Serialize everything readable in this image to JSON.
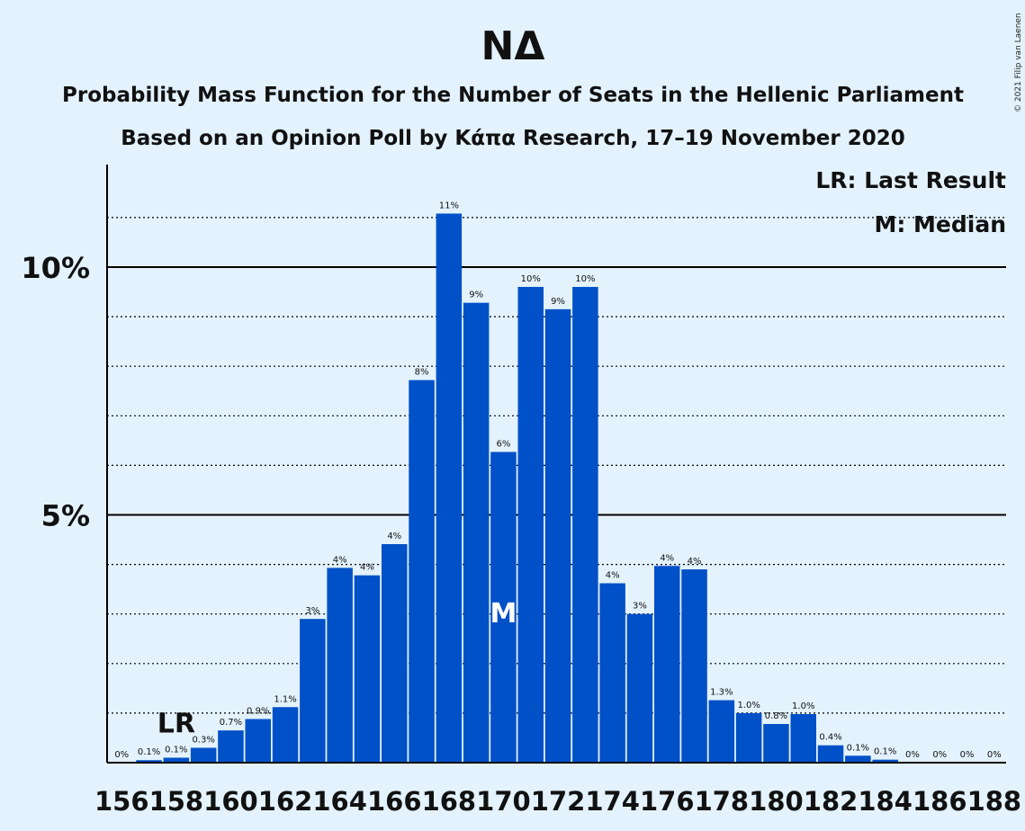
{
  "chart_data": {
    "type": "bar",
    "title": "ΝΔ",
    "subtitle_1": "Probability Mass Function for the Number of Seats in the Hellenic Parliament",
    "subtitle_2": "Based on an Opinion Poll by Κάπα Research, 17–19 November 2020",
    "copyright": "© 2021 Filip van Laenen",
    "legend": {
      "last_result": "LR: Last Result",
      "median": "M: Median",
      "placement": "top-right"
    },
    "y_ticks": [
      {
        "value": 5,
        "label": "5%"
      },
      {
        "value": 10,
        "label": "10%"
      }
    ],
    "ylim": [
      0,
      12
    ],
    "grid_dotted_every": 1,
    "bar_color": "#0050c8",
    "x": [
      156,
      157,
      158,
      159,
      160,
      161,
      162,
      163,
      164,
      165,
      166,
      167,
      168,
      169,
      170,
      171,
      172,
      173,
      174,
      175,
      176,
      177,
      178,
      179,
      180,
      181,
      182,
      183,
      184,
      185,
      186,
      187,
      188
    ],
    "values": [
      0.0,
      0.05,
      0.1,
      0.3,
      0.65,
      0.88,
      1.12,
      2.9,
      3.93,
      3.78,
      4.41,
      7.72,
      11.08,
      9.28,
      6.27,
      9.6,
      9.15,
      9.6,
      3.62,
      3.0,
      3.97,
      3.9,
      1.26,
      1.0,
      0.78,
      0.98,
      0.35,
      0.14,
      0.06,
      0.0,
      0.0,
      0.0,
      0.0
    ],
    "data_labels": [
      "0%",
      "0.1%",
      "0.1%",
      "0.3%",
      "0.7%",
      "0.9%",
      "1.1%",
      "3%",
      "4%",
      "4%",
      "4%",
      "8%",
      "11%",
      "9%",
      "6%",
      "10%",
      "9%",
      "10%",
      "4%",
      "3%",
      "4%",
      "4%",
      "1.3%",
      "1.0%",
      "0.8%",
      "1.0%",
      "0.4%",
      "0.1%",
      "0.1%",
      "0%",
      "0%",
      "0%",
      "0%"
    ],
    "x_tick_labels": [
      "156",
      "158",
      "160",
      "162",
      "164",
      "166",
      "168",
      "170",
      "172",
      "174",
      "176",
      "178",
      "180",
      "182",
      "184",
      "186",
      "188"
    ],
    "last_result": {
      "x": 158,
      "label": "LR"
    },
    "median": {
      "x": 170,
      "label": "M"
    }
  }
}
